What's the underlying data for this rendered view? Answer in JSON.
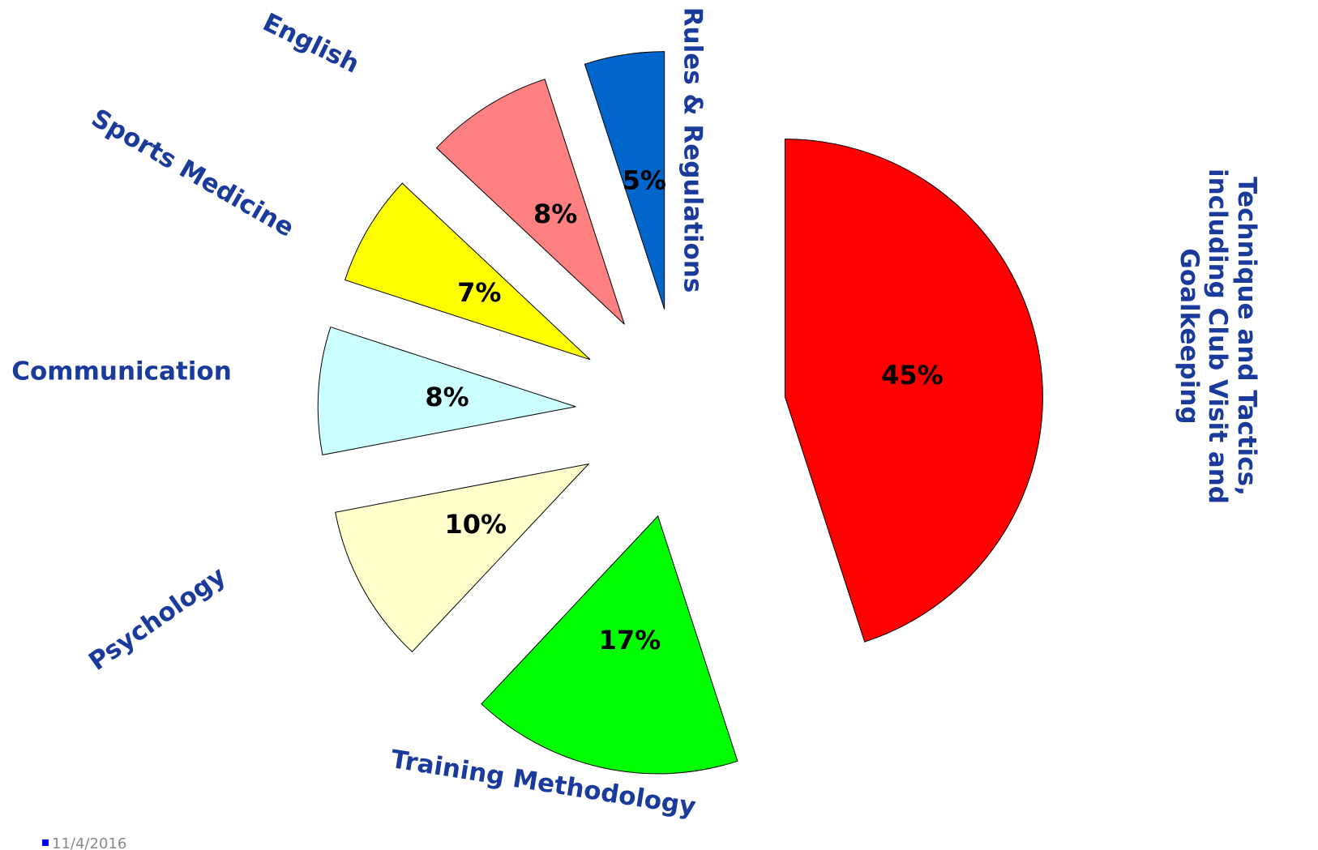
{
  "chart_data": {
    "type": "pie",
    "categories": [
      "Technique and Tactics, including Club Visit and Goalkeeping",
      "Training Methodology",
      "Psychology",
      "Communication",
      "Sports Medicine",
      "English",
      "Rules & Regulations"
    ],
    "values": [
      45,
      17,
      10,
      8,
      7,
      8,
      5
    ],
    "value_labels": [
      "45%",
      "17%",
      "10%",
      "8%",
      "7%",
      "8%",
      "5%"
    ],
    "colors": [
      "#ff0000",
      "#00ff00",
      "#ffffcc",
      "#ccffff",
      "#ffff00",
      "#ff8080",
      "#0066cc"
    ],
    "exploded": true,
    "date": "11/4/2016"
  }
}
